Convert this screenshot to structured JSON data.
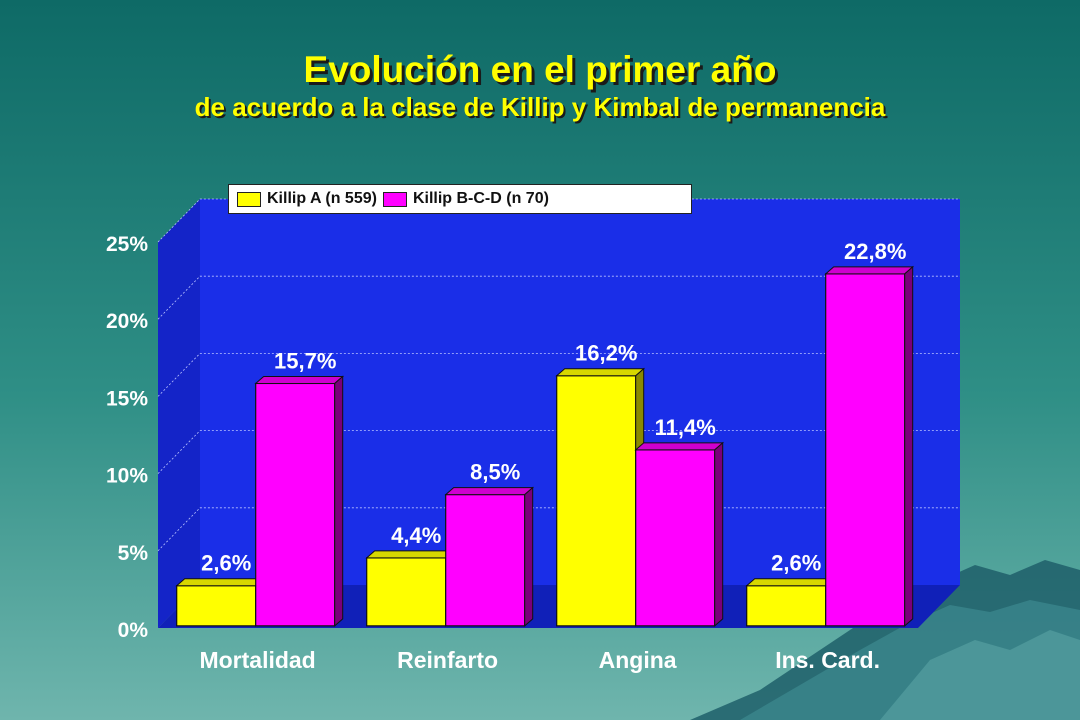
{
  "title": "Evolución en el primer año",
  "subtitle": "de acuerdo a la clase  de Killip y Kimbal de permanencia",
  "colors": {
    "series_a": "#ffff00",
    "series_b": "#ff00ff",
    "plot_back": "#1a2ee8",
    "label_text": "#ffffff"
  },
  "chart_data": {
    "type": "bar",
    "categories": [
      "Mortalidad",
      "Reinfarto",
      "Angina",
      "Ins. Card."
    ],
    "series": [
      {
        "name": "Killip A (n 559)",
        "values": [
          2.6,
          4.4,
          16.2,
          2.6
        ],
        "labels": [
          "2,6%",
          "4,4%",
          "16,2%",
          "2,6%"
        ]
      },
      {
        "name": "Killip B-C-D (n 70)",
        "values": [
          15.7,
          8.5,
          11.4,
          22.8
        ],
        "labels": [
          "15,7%",
          "8,5%",
          "11,4%",
          "22,8%"
        ]
      }
    ],
    "ylim": [
      0,
      25
    ],
    "yticks": [
      0,
      5,
      10,
      15,
      20,
      25
    ],
    "ytick_labels": [
      "0%",
      "5%",
      "10%",
      "15%",
      "20%",
      "25%"
    ],
    "grid": true,
    "legend_position": "top"
  }
}
